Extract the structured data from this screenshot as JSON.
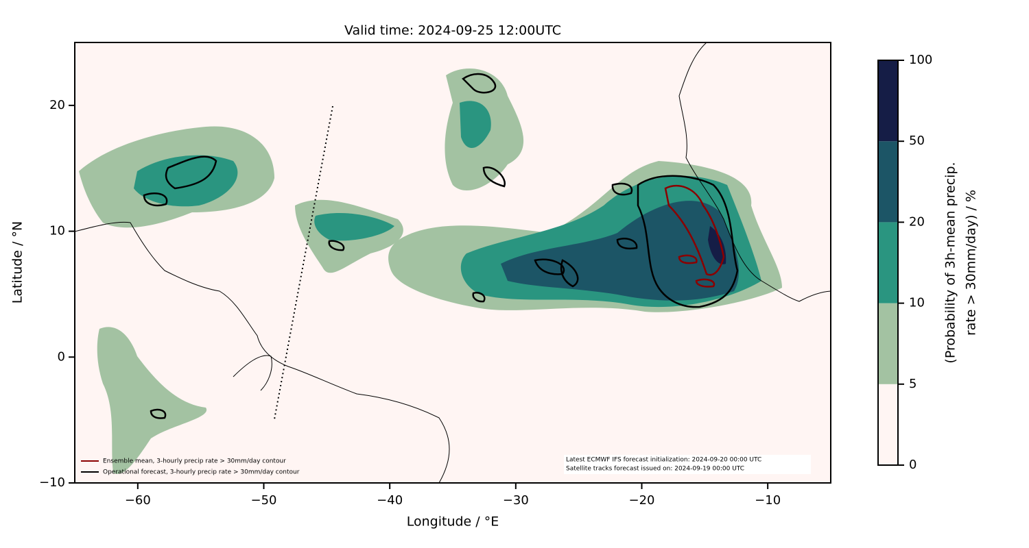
{
  "title": "Valid time: 2024-09-25 12:00UTC",
  "map": {
    "xlabel": "Longitude / °E",
    "ylabel": "Latitude / °N",
    "xlim": [
      -65,
      -5
    ],
    "ylim": [
      -10,
      25
    ],
    "xticks": [
      {
        "value": -60,
        "label": "−60"
      },
      {
        "value": -50,
        "label": "−50"
      },
      {
        "value": -40,
        "label": "−40"
      },
      {
        "value": -30,
        "label": "−30"
      },
      {
        "value": -20,
        "label": "−20"
      },
      {
        "value": -10,
        "label": "−10"
      }
    ],
    "yticks": [
      {
        "value": -10,
        "label": "−10"
      },
      0,
      10,
      20
    ]
  },
  "legend": [
    {
      "label": "Ensemble mean, 3-hourly precip rate > 30mm/day contour",
      "color": "#8b0000"
    },
    {
      "label": "Operational forecast, 3-hourly precip rate > 30mm/day contour",
      "color": "#000000"
    }
  ],
  "info": [
    "Latest ECMWF IFS forecast initialization: 2024-09-20 00:00 UTC",
    "Satellite tracks forecast issued on: 2024-09-19 00:00 UTC"
  ],
  "colorbar": {
    "label": [
      "(Probability of 3h-mean precip.",
      "rate > 30mm/day) / %"
    ],
    "levels": [
      0,
      5,
      10,
      20,
      50,
      100
    ],
    "colors": [
      "#fff5f3",
      "#a3c2a2",
      "#2a9580",
      "#1c5566",
      "#151d46"
    ]
  }
}
